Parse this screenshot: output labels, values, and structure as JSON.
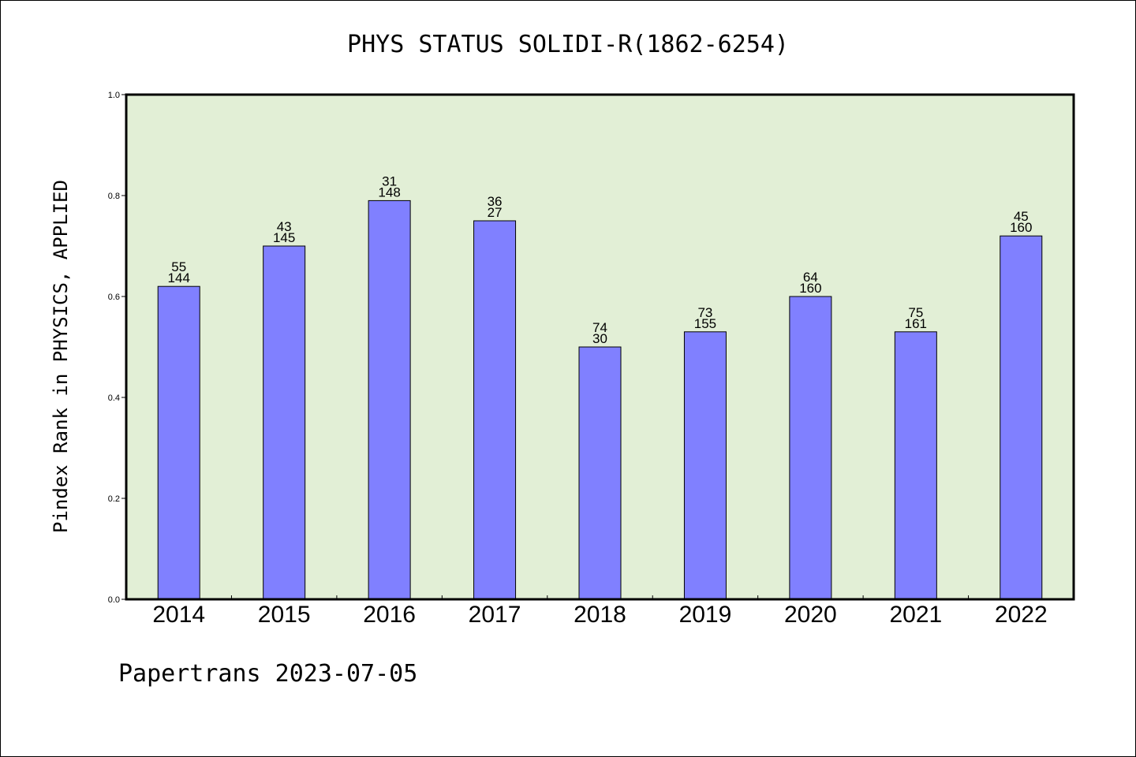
{
  "footer": "Papertrans 2023-07-05",
  "chart_data": {
    "type": "bar",
    "title": "PHYS STATUS SOLIDI-R(1862-6254)",
    "xlabel": "",
    "ylabel": "Pindex Rank in PHYSICS, APPLIED",
    "ylim": [
      0,
      1.0
    ],
    "yticks": [
      "0.0",
      "0.2",
      "0.4",
      "0.6",
      "0.8",
      "1.0"
    ],
    "grid": false,
    "categories": [
      "2014",
      "2015",
      "2016",
      "2017",
      "2018",
      "2019",
      "2020",
      "2021",
      "2022"
    ],
    "values": [
      0.62,
      0.7,
      0.79,
      0.75,
      0.5,
      0.53,
      0.6,
      0.53,
      0.72
    ],
    "labels_top": [
      "55",
      "43",
      "31",
      "36",
      "74",
      "73",
      "64",
      "75",
      "45"
    ],
    "labels_bottom": [
      "144",
      "145",
      "148",
      "27",
      "30",
      "155",
      "160",
      "161",
      "160"
    ],
    "colors": {
      "bar": "#8080ff",
      "plot_background": "#e2efd6",
      "axis": "#000000"
    }
  }
}
